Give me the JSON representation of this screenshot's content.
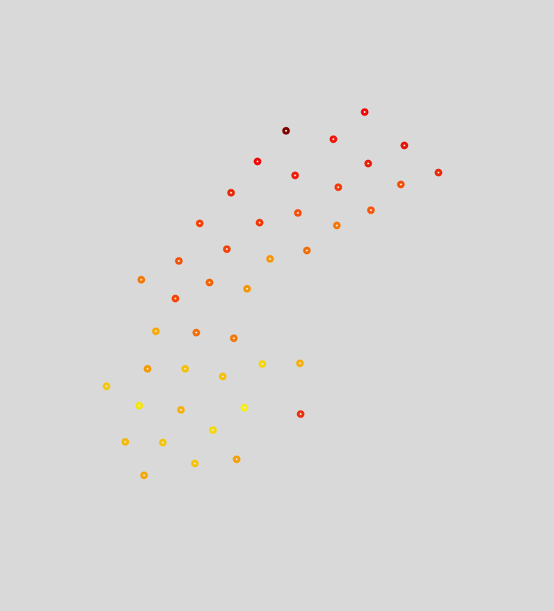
{
  "background_color": "#d9d9d9",
  "markers": [
    {
      "id": "m1",
      "color": "#ee0a0a"
    },
    {
      "id": "m2",
      "color": "#7a0000"
    },
    {
      "id": "m3",
      "color": "#f0180c"
    },
    {
      "id": "m4",
      "color": "#e6180c"
    },
    {
      "id": "m5",
      "color": "#f00c0c"
    },
    {
      "id": "m6",
      "color": "#e8200c"
    },
    {
      "id": "m7",
      "color": "#f01e0c"
    },
    {
      "id": "m8",
      "color": "#ec2a0c"
    },
    {
      "id": "m9",
      "color": "#f43a0a"
    },
    {
      "id": "m10",
      "color": "#f2500a"
    },
    {
      "id": "m11",
      "color": "#e8280a"
    },
    {
      "id": "m12",
      "color": "#f4420a"
    },
    {
      "id": "m13",
      "color": "#f44e0a"
    },
    {
      "id": "m14",
      "color": "#f6560a"
    },
    {
      "id": "m15",
      "color": "#f4380a"
    },
    {
      "id": "m16",
      "color": "#f4780a"
    },
    {
      "id": "m17",
      "color": "#f4400a"
    },
    {
      "id": "m18",
      "color": "#f0520a"
    },
    {
      "id": "m19",
      "color": "#f0700a"
    },
    {
      "id": "m20",
      "color": "#f4960a"
    },
    {
      "id": "m21",
      "color": "#f4780a"
    },
    {
      "id": "m22",
      "color": "#f0640a"
    },
    {
      "id": "m23",
      "color": "#f4460a"
    },
    {
      "id": "m24",
      "color": "#f4960a"
    },
    {
      "id": "m25",
      "color": "#f4aa0a"
    },
    {
      "id": "m26",
      "color": "#f0720a"
    },
    {
      "id": "m27",
      "color": "#f0780a"
    },
    {
      "id": "m28",
      "color": "#f49a0a"
    },
    {
      "id": "m29",
      "color": "#f4c00a"
    },
    {
      "id": "m30",
      "color": "#f4d60a"
    },
    {
      "id": "m31",
      "color": "#f4b00a"
    },
    {
      "id": "m32",
      "color": "#f4c00a"
    },
    {
      "id": "m33",
      "color": "#f4c80a"
    },
    {
      "id": "m34",
      "color": "#f4e40a"
    },
    {
      "id": "m35",
      "color": "#f4b00a"
    },
    {
      "id": "m36",
      "color": "#f4ee14"
    },
    {
      "id": "m37",
      "color": "#f4d80a"
    },
    {
      "id": "m38",
      "color": "#f4b80a"
    },
    {
      "id": "m39",
      "color": "#ec3012"
    },
    {
      "id": "m40",
      "color": "#f4c40a"
    },
    {
      "id": "m41",
      "color": "#0ae014"
    },
    {
      "id": "m42",
      "color": "#f4ee0a"
    },
    {
      "id": "m43",
      "color": "#f4c40a"
    },
    {
      "id": "m44",
      "color": "#f4a00a"
    },
    {
      "id": "m45",
      "color": "#f4a80a"
    }
  ]
}
